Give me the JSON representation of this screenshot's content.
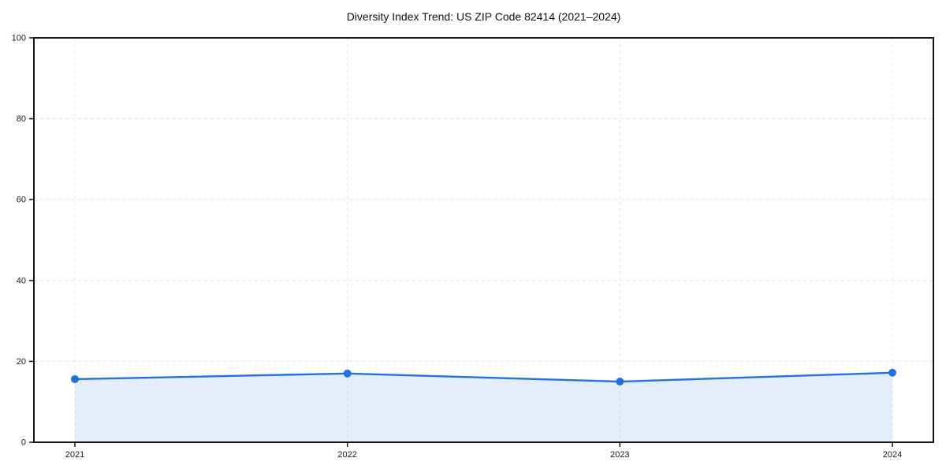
{
  "chart_data": {
    "type": "area",
    "title": "Diversity Index Trend: US ZIP Code 82414 (2021–2024)",
    "categories": [
      "2021",
      "2022",
      "2023",
      "2024"
    ],
    "values": [
      15.6,
      17.0,
      15.0,
      17.2
    ],
    "xlabel": "",
    "ylabel": "",
    "ylim": [
      0,
      100
    ],
    "yticks": [
      0,
      20,
      40,
      60,
      80,
      100
    ],
    "grid": "on",
    "grid_style": "dashed",
    "legend": "none",
    "line_color": "#2271e0",
    "marker_color": "#2271e0",
    "fill_opacity": 0.12,
    "grid_color": "#e4e4e4",
    "spine_color": "#141414",
    "tick_label_color": "#1a1a1a",
    "title_color": "#111111",
    "background_color": "#ffffff"
  }
}
